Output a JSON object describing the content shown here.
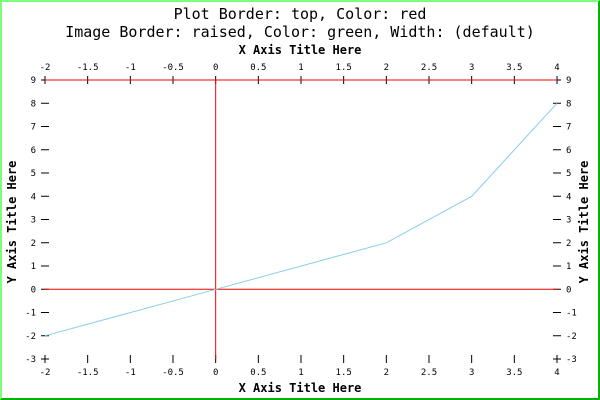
{
  "chart_data": {
    "type": "line",
    "title": "Plot Border: top, Color: red",
    "subtitle": "Image Border: raised, Color: green, Width: (default)",
    "xlabel": "X Axis Title Here",
    "ylabel": "Y Axis Title Here",
    "xlim": [
      -2,
      4
    ],
    "ylim": [
      -3,
      9
    ],
    "x_ticks": [
      "-2",
      "-1.5",
      "-1",
      "-0.5",
      "0",
      "0.5",
      "1",
      "1.5",
      "2",
      "2.5",
      "3",
      "3.5",
      "4"
    ],
    "y_ticks": [
      "-3",
      "-2",
      "-1",
      "0",
      "1",
      "2",
      "3",
      "4",
      "5",
      "6",
      "7",
      "8",
      "9"
    ],
    "grid": false,
    "series": [
      {
        "x": [
          -2,
          0,
          2,
          3,
          4
        ],
        "y": [
          -2,
          0,
          2,
          4,
          8
        ],
        "color": "#87CEEB"
      }
    ],
    "colors": {
      "plot_border": "#FF0000",
      "zero_lines": "#FF0000",
      "image_border": "#00FF00"
    }
  }
}
